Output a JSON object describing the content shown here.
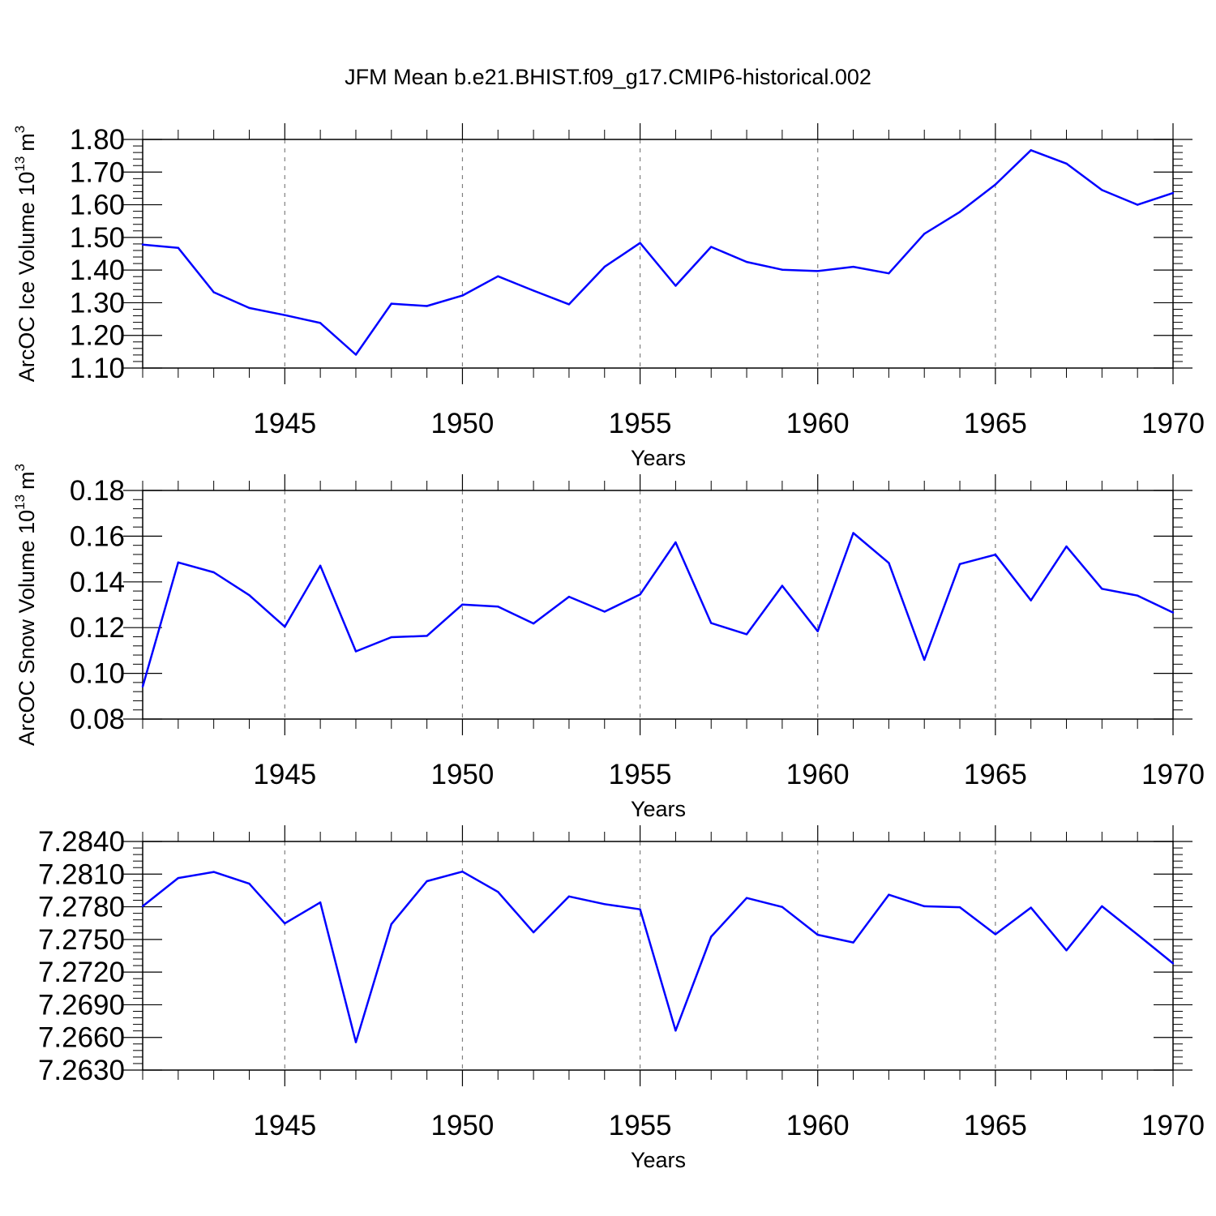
{
  "title": "JFM Mean b.e21.BHIST.f09_g17.CMIP6-historical.002",
  "colors": {
    "line": "#0000ff",
    "axis": "#000000",
    "grid": "#808080"
  },
  "chart_data": [
    {
      "type": "line",
      "xlabel": "Years",
      "ylabel": "ArcOC Ice Volume 10",
      "ylabel_exponent": "13",
      "ylabel_unit": "m",
      "ylabel_unit_exponent": "3",
      "xlim": [
        1941,
        1970
      ],
      "ylim": [
        1.1,
        1.8
      ],
      "xticks": [
        "1945",
        "1950",
        "1955",
        "1960",
        "1965",
        "1970"
      ],
      "yticks": [
        "1.10",
        "1.20",
        "1.30",
        "1.40",
        "1.50",
        "1.60",
        "1.70",
        "1.80"
      ],
      "grid": "dashed vertical at x major ticks",
      "x": [
        1941,
        1942,
        1943,
        1944,
        1945,
        1946,
        1947,
        1948,
        1949,
        1950,
        1951,
        1952,
        1953,
        1954,
        1955,
        1956,
        1957,
        1958,
        1959,
        1960,
        1961,
        1962,
        1963,
        1964,
        1965,
        1966,
        1967,
        1968,
        1969,
        1970
      ],
      "series": [
        {
          "values": [
            1.478,
            1.468,
            1.332,
            1.284,
            1.262,
            1.238,
            1.141,
            1.297,
            1.29,
            1.322,
            1.381,
            1.337,
            1.295,
            1.41,
            1.483,
            1.352,
            1.471,
            1.425,
            1.401,
            1.397,
            1.41,
            1.39,
            1.511,
            1.578,
            1.662,
            1.767,
            1.726,
            1.645,
            1.6,
            1.636
          ]
        }
      ]
    },
    {
      "type": "line",
      "xlabel": "Years",
      "ylabel": "ArcOC Snow Volume 10",
      "ylabel_exponent": "13",
      "ylabel_unit": "m",
      "ylabel_unit_exponent": "3",
      "xlim": [
        1941,
        1970
      ],
      "ylim": [
        0.08,
        0.18
      ],
      "xticks": [
        "1945",
        "1950",
        "1955",
        "1960",
        "1965",
        "1970"
      ],
      "yticks": [
        "0.08",
        "0.10",
        "0.12",
        "0.14",
        "0.16",
        "0.18"
      ],
      "grid": "dashed vertical at x major ticks",
      "x": [
        1941,
        1942,
        1943,
        1944,
        1945,
        1946,
        1947,
        1948,
        1949,
        1950,
        1951,
        1952,
        1953,
        1954,
        1955,
        1956,
        1957,
        1958,
        1959,
        1960,
        1961,
        1962,
        1963,
        1964,
        1965,
        1966,
        1967,
        1968,
        1969,
        1970
      ],
      "series": [
        {
          "values": [
            0.0942,
            0.1485,
            0.1442,
            0.1342,
            0.1204,
            0.1471,
            0.1096,
            0.1158,
            0.1164,
            0.1301,
            0.1292,
            0.1218,
            0.1335,
            0.127,
            0.1345,
            0.1573,
            0.122,
            0.1171,
            0.1383,
            0.1184,
            0.1614,
            0.1483,
            0.1059,
            0.1478,
            0.1519,
            0.1319,
            0.1555,
            0.137,
            0.134,
            0.1266
          ]
        }
      ]
    },
    {
      "type": "line",
      "xlabel": "Years",
      "ylabel": "",
      "xlim": [
        1941,
        1970
      ],
      "ylim": [
        7.263,
        7.284
      ],
      "xticks": [
        "1945",
        "1950",
        "1955",
        "1960",
        "1965",
        "1970"
      ],
      "yticks": [
        "7.2630",
        "7.2660",
        "7.2690",
        "7.2720",
        "7.2750",
        "7.2780",
        "7.2810",
        "7.2840"
      ],
      "grid": "dashed vertical at x major ticks",
      "x": [
        1941,
        1942,
        1943,
        1944,
        1945,
        1946,
        1947,
        1948,
        1949,
        1950,
        1951,
        1952,
        1953,
        1954,
        1955,
        1956,
        1957,
        1958,
        1959,
        1960,
        1961,
        1962,
        1963,
        1964,
        1965,
        1966,
        1967,
        1968,
        1969,
        1970
      ],
      "series": [
        {
          "values": [
            7.27805,
            7.28064,
            7.2812,
            7.28012,
            7.27647,
            7.2784,
            7.26556,
            7.27641,
            7.28035,
            7.28123,
            7.27937,
            7.27565,
            7.27895,
            7.27824,
            7.27777,
            7.26663,
            7.27525,
            7.27881,
            7.27798,
            7.27543,
            7.27472,
            7.27911,
            7.27805,
            7.27796,
            7.27547,
            7.27792,
            7.274,
            7.27805,
            7.27544,
            7.2728
          ]
        }
      ]
    }
  ]
}
